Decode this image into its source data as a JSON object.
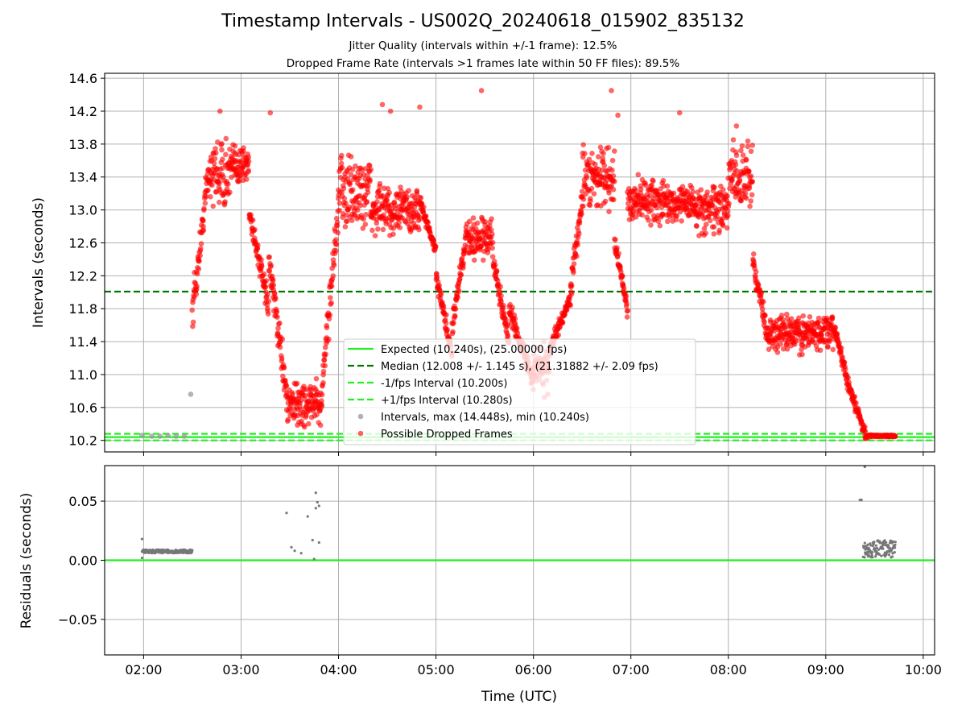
{
  "title": "Timestamp Intervals - US002Q_20240618_015902_835132",
  "subtitle_lines": [
    "Jitter Quality (intervals within +/-1 frame): 12.5%",
    "Dropped Frame Rate (intervals >1 frames late within 50 FF files): 89.5%"
  ],
  "colors": {
    "expected": "#22ee22",
    "median": "#007700",
    "fps_interval": "#22ee22",
    "intervals": "#999999",
    "dropped": "#ff0000",
    "residuals": "#777777",
    "grid": "#b0b0b0"
  },
  "chart_data": [
    {
      "type": "scatter",
      "ylabel": "Intervals (seconds)",
      "ylim": [
        10.06,
        14.66
      ],
      "xlim": [
        "01:36",
        "10:07"
      ],
      "y_ticks": [
        "10.2",
        "10.6",
        "11.0",
        "11.4",
        "11.8",
        "12.2",
        "12.6",
        "13.0",
        "13.4",
        "13.8",
        "14.2",
        "14.6"
      ],
      "grid": true,
      "legend_position": "lower-center",
      "legend": [
        {
          "label": "Expected (10.240s), (25.00000 fps)",
          "style": "solid-line"
        },
        {
          "label": "Median (12.008 +/- 1.145 s), (21.31882 +/- 2.09 fps)",
          "style": "dashed-line"
        },
        {
          "label": "-1/fps Interval (10.200s)",
          "style": "dashed-line"
        },
        {
          "label": "+1/fps Interval (10.280s)",
          "style": "dashed-line"
        },
        {
          "label": "Intervals, max (14.448s), min (10.240s)",
          "style": "marker"
        },
        {
          "label": "Possible Dropped Frames",
          "style": "marker"
        }
      ],
      "horizontal_lines": {
        "expected": 10.24,
        "median": 12.008,
        "minus_fps": 10.2,
        "plus_fps": 10.28
      },
      "interval_points": [
        {
          "t": "01:59",
          "y": 10.26
        },
        {
          "t": "02:05",
          "y": 10.25
        },
        {
          "t": "02:10",
          "y": 10.25
        },
        {
          "t": "02:15",
          "y": 10.26
        },
        {
          "t": "02:20",
          "y": 10.25
        },
        {
          "t": "02:25",
          "y": 10.25
        },
        {
          "t": "02:29",
          "y": 10.76
        }
      ],
      "dropped_segments": [
        {
          "start": "02:30",
          "end": "02:40",
          "low": 11.7,
          "high": 13.5,
          "step": "1m",
          "trend": "up"
        },
        {
          "start": "02:40",
          "end": "02:55",
          "low": 12.9,
          "high": 14.0,
          "step": "1m",
          "trend": "flat"
        },
        {
          "start": "02:55",
          "end": "03:05",
          "low": 13.2,
          "high": 13.9,
          "step": "1m",
          "trend": "flat"
        },
        {
          "start": "03:05",
          "end": "03:17",
          "low": 11.8,
          "high": 13.0,
          "step": "1m",
          "trend": "down"
        },
        {
          "start": "03:17",
          "end": "03:28",
          "low": 10.8,
          "high": 12.4,
          "step": "1m",
          "trend": "down"
        },
        {
          "start": "03:28",
          "end": "03:50",
          "low": 10.3,
          "high": 11.0,
          "step": "1m",
          "trend": "flat"
        },
        {
          "start": "03:50",
          "end": "04:02",
          "low": 10.9,
          "high": 13.5,
          "step": "1m",
          "trend": "up"
        },
        {
          "start": "04:02",
          "end": "04:20",
          "low": 12.6,
          "high": 13.8,
          "step": "1m",
          "trend": "flat"
        },
        {
          "start": "04:20",
          "end": "04:50",
          "low": 12.6,
          "high": 13.4,
          "step": "1m",
          "trend": "flat"
        },
        {
          "start": "04:50",
          "end": "05:00",
          "low": 12.5,
          "high": 13.1,
          "step": "1m",
          "trend": "down"
        },
        {
          "start": "05:00",
          "end": "05:10",
          "low": 11.2,
          "high": 12.2,
          "step": "1m",
          "trend": "down"
        },
        {
          "start": "05:10",
          "end": "05:18",
          "low": 11.6,
          "high": 12.6,
          "step": "1m",
          "trend": "up"
        },
        {
          "start": "05:18",
          "end": "05:35",
          "low": 12.3,
          "high": 13.0,
          "step": "1m",
          "trend": "flat"
        },
        {
          "start": "05:35",
          "end": "05:45",
          "low": 11.4,
          "high": 12.4,
          "step": "1m",
          "trend": "down"
        },
        {
          "start": "05:45",
          "end": "06:00",
          "low": 10.9,
          "high": 11.8,
          "step": "1m",
          "trend": "down"
        },
        {
          "start": "06:00",
          "end": "06:10",
          "low": 10.7,
          "high": 11.5,
          "step": "1m",
          "trend": "flat"
        },
        {
          "start": "06:10",
          "end": "06:22",
          "low": 11.3,
          "high": 11.9,
          "step": "1m",
          "trend": "up"
        },
        {
          "start": "06:22",
          "end": "06:30",
          "low": 11.9,
          "high": 13.1,
          "step": "1m",
          "trend": "up"
        },
        {
          "start": "06:30",
          "end": "06:50",
          "low": 12.9,
          "high": 13.9,
          "step": "1m",
          "trend": "flat"
        },
        {
          "start": "06:50",
          "end": "06:58",
          "low": 11.8,
          "high": 12.6,
          "step": "1m",
          "trend": "down"
        },
        {
          "start": "06:58",
          "end": "07:20",
          "low": 12.7,
          "high": 13.5,
          "step": "1m",
          "trend": "flat"
        },
        {
          "start": "07:20",
          "end": "07:40",
          "low": 12.8,
          "high": 13.4,
          "step": "1m",
          "trend": "flat"
        },
        {
          "start": "07:40",
          "end": "08:00",
          "low": 12.6,
          "high": 13.4,
          "step": "1m",
          "trend": "flat"
        },
        {
          "start": "08:00",
          "end": "08:15",
          "low": 12.8,
          "high": 14.0,
          "step": "1m",
          "trend": "flat"
        },
        {
          "start": "08:15",
          "end": "08:25",
          "low": 11.4,
          "high": 12.4,
          "step": "1m",
          "trend": "down"
        },
        {
          "start": "08:25",
          "end": "09:05",
          "low": 11.2,
          "high": 11.8,
          "step": "1m",
          "trend": "flat"
        },
        {
          "start": "09:05",
          "end": "09:15",
          "low": 10.8,
          "high": 11.6,
          "step": "1m",
          "trend": "down"
        },
        {
          "start": "09:15",
          "end": "09:25",
          "low": 10.25,
          "high": 10.8,
          "step": "1m",
          "trend": "down"
        },
        {
          "start": "09:25",
          "end": "09:43",
          "low": 10.24,
          "high": 10.27,
          "step": "1m",
          "trend": "flat"
        }
      ],
      "dropped_outliers": [
        {
          "t": "02:47",
          "y": 14.2
        },
        {
          "t": "03:18",
          "y": 14.18
        },
        {
          "t": "04:27",
          "y": 14.28
        },
        {
          "t": "04:32",
          "y": 14.2
        },
        {
          "t": "04:50",
          "y": 14.25
        },
        {
          "t": "05:28",
          "y": 14.45
        },
        {
          "t": "06:48",
          "y": 14.45
        },
        {
          "t": "06:52",
          "y": 14.15
        },
        {
          "t": "07:30",
          "y": 14.18
        },
        {
          "t": "08:05",
          "y": 14.02
        }
      ]
    },
    {
      "type": "scatter",
      "xlabel": "Time (UTC)",
      "ylabel": "Residuals (seconds)",
      "ylim": [
        -0.08,
        0.08
      ],
      "xlim": [
        "01:36",
        "10:07"
      ],
      "x_ticks": [
        "02:00",
        "03:00",
        "04:00",
        "05:00",
        "06:00",
        "07:00",
        "08:00",
        "09:00",
        "10:00"
      ],
      "y_ticks": [
        "−0.05",
        "0.00",
        "0.05"
      ],
      "grid": true,
      "zero_line": 0,
      "residual_segments": [
        {
          "start": "01:59",
          "end": "02:30",
          "low": 0.006,
          "high": 0.009,
          "step": "0.5m"
        },
        {
          "start": "09:23",
          "end": "09:43",
          "low": 0.002,
          "high": 0.017,
          "step": "0.5m"
        }
      ],
      "residual_points": [
        {
          "t": "01:59",
          "y": 0.018
        },
        {
          "t": "01:59",
          "y": 0.002
        },
        {
          "t": "03:28",
          "y": 0.04
        },
        {
          "t": "03:31",
          "y": 0.011
        },
        {
          "t": "03:33",
          "y": 0.008
        },
        {
          "t": "03:37",
          "y": 0.006
        },
        {
          "t": "03:41",
          "y": 0.037
        },
        {
          "t": "03:44",
          "y": 0.017
        },
        {
          "t": "03:45",
          "y": 0.001
        },
        {
          "t": "03:46",
          "y": 0.057
        },
        {
          "t": "03:46",
          "y": 0.044
        },
        {
          "t": "03:47",
          "y": 0.049
        },
        {
          "t": "03:48",
          "y": 0.046
        },
        {
          "t": "03:48",
          "y": 0.015
        },
        {
          "t": "09:21",
          "y": 0.051
        },
        {
          "t": "09:22",
          "y": 0.051
        },
        {
          "t": "09:24",
          "y": 0.079
        }
      ]
    }
  ]
}
